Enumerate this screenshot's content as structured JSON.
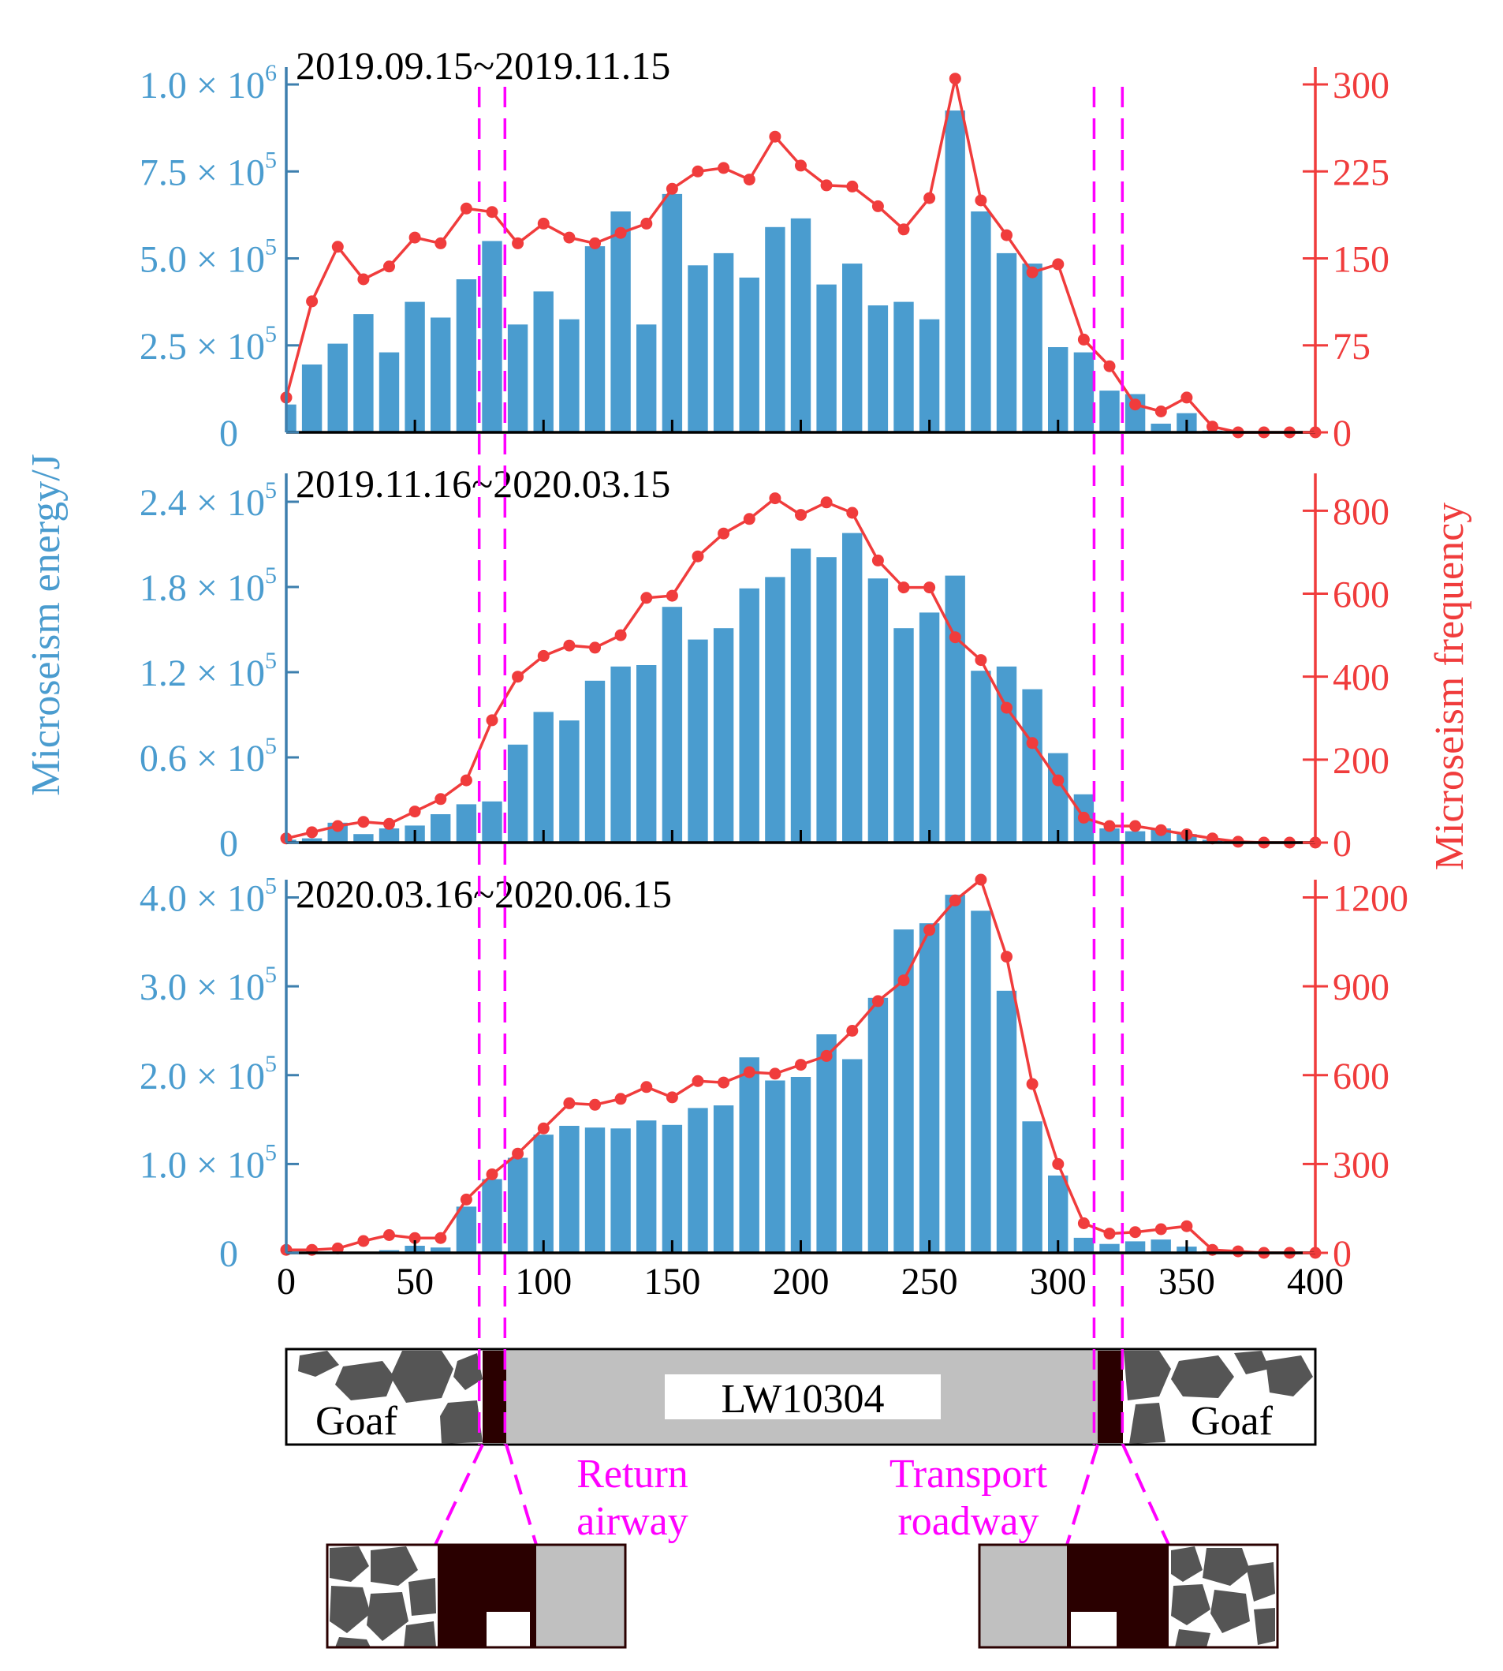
{
  "colors": {
    "energy": "#4a9ccf",
    "energy_axis": "#3d7fae",
    "frequency": "#f03c3c",
    "guide": "#ff00ff",
    "pillar": "#2a0000",
    "coal": "#c0c0c0",
    "rock": "#555555",
    "text": "#000000"
  },
  "labels": {
    "y_left": "Microseism energy/J",
    "y_right": "Microseism frequency",
    "goaf_left": "Goaf",
    "goaf_right": "Goaf",
    "panel": "LW10304",
    "return_line1": "Return",
    "return_line2": "airway",
    "transport_line1": "Transport",
    "transport_line2": "roadway"
  },
  "chart_data": [
    {
      "type": "bar+line",
      "title": "2019.09.15~2019.11.15",
      "xlim": [
        0,
        400
      ],
      "x_bar": [
        0,
        10,
        20,
        30,
        40,
        50,
        60,
        70,
        80,
        90,
        100,
        110,
        120,
        130,
        140,
        150,
        160,
        170,
        180,
        190,
        200,
        210,
        220,
        230,
        240,
        250,
        260,
        270,
        280,
        290,
        300,
        310,
        320,
        330,
        340,
        350,
        360,
        370,
        380,
        390,
        400
      ],
      "energy": [
        80000,
        195000,
        255000,
        340000,
        230000,
        375000,
        330000,
        440000,
        550000,
        310000,
        405000,
        325000,
        535000,
        635000,
        310000,
        685000,
        480000,
        515000,
        445000,
        590000,
        615000,
        425000,
        485000,
        365000,
        375000,
        325000,
        925000,
        635000,
        515000,
        485000,
        245000,
        230000,
        120000,
        110000,
        25000,
        55000,
        5000,
        0,
        0,
        0,
        0
      ],
      "ylim_left": [
        0,
        1050000
      ],
      "yticks_left": [
        0,
        250000,
        500000,
        750000,
        1000000
      ],
      "ytick_labels_left": [
        {
          "m": "0",
          "e": ""
        },
        {
          "m": "2.5 × 10",
          "e": "5"
        },
        {
          "m": "5.0 × 10",
          "e": "5"
        },
        {
          "m": "7.5 × 10",
          "e": "5"
        },
        {
          "m": "1.0 × 10",
          "e": "6"
        }
      ],
      "x_line": [
        0,
        10,
        20,
        30,
        40,
        50,
        60,
        70,
        80,
        90,
        100,
        110,
        120,
        130,
        140,
        150,
        160,
        170,
        180,
        190,
        200,
        210,
        220,
        230,
        240,
        250,
        260,
        270,
        280,
        290,
        300,
        310,
        320,
        330,
        340,
        350,
        360,
        370,
        380,
        390,
        400
      ],
      "frequency": [
        30,
        113,
        160,
        132,
        143,
        168,
        163,
        193,
        190,
        163,
        180,
        168,
        163,
        172,
        180,
        210,
        225,
        228,
        218,
        255,
        230,
        213,
        212,
        195,
        175,
        202,
        305,
        200,
        170,
        138,
        145,
        80,
        57,
        24,
        18,
        30,
        5,
        0,
        0,
        0,
        0
      ],
      "ylim_right": [
        0,
        315
      ],
      "yticks_right": [
        0,
        75,
        150,
        225,
        300
      ],
      "ytick_labels_right": [
        "0",
        "75",
        "150",
        "225",
        "300"
      ]
    },
    {
      "type": "bar+line",
      "title": "2019.11.16~2020.03.15",
      "xlim": [
        0,
        400
      ],
      "x_bar": [
        0,
        10,
        20,
        30,
        40,
        50,
        60,
        70,
        80,
        90,
        100,
        110,
        120,
        130,
        140,
        150,
        160,
        170,
        180,
        190,
        200,
        210,
        220,
        230,
        240,
        250,
        260,
        270,
        280,
        290,
        300,
        310,
        320,
        330,
        340,
        350,
        360,
        370,
        380,
        390,
        400
      ],
      "energy": [
        2000,
        3000,
        14000,
        6000,
        10000,
        12000,
        20000,
        27000,
        29000,
        69000,
        92000,
        86000,
        114000,
        124000,
        125000,
        166000,
        143000,
        151000,
        179000,
        187000,
        207000,
        201000,
        218000,
        186000,
        151000,
        162000,
        188000,
        121000,
        124000,
        108000,
        63000,
        34000,
        10000,
        8000,
        10000,
        6000,
        2000,
        0,
        0,
        0,
        0
      ],
      "ylim_left": [
        0,
        260000
      ],
      "yticks_left": [
        0,
        60000,
        120000,
        180000,
        240000
      ],
      "ytick_labels_left": [
        {
          "m": "0",
          "e": ""
        },
        {
          "m": "0.6 × 10",
          "e": "5"
        },
        {
          "m": "1.2 × 10",
          "e": "5"
        },
        {
          "m": "1.8 × 10",
          "e": "5"
        },
        {
          "m": "2.4 × 10",
          "e": "5"
        }
      ],
      "x_line": [
        0,
        10,
        20,
        30,
        40,
        50,
        60,
        70,
        80,
        90,
        100,
        110,
        120,
        130,
        140,
        150,
        160,
        170,
        180,
        190,
        200,
        210,
        220,
        230,
        240,
        250,
        260,
        270,
        280,
        290,
        300,
        310,
        320,
        330,
        340,
        350,
        360,
        370,
        380,
        390,
        400
      ],
      "frequency": [
        10,
        25,
        40,
        50,
        45,
        75,
        105,
        150,
        295,
        400,
        450,
        475,
        470,
        500,
        590,
        595,
        690,
        745,
        780,
        830,
        790,
        820,
        795,
        680,
        615,
        615,
        495,
        440,
        325,
        240,
        150,
        60,
        40,
        40,
        30,
        20,
        10,
        2,
        0,
        0,
        0
      ],
      "ylim_right": [
        0,
        890
      ],
      "yticks_right": [
        0,
        200,
        400,
        600,
        800
      ],
      "ytick_labels_right": [
        "0",
        "200",
        "400",
        "600",
        "800"
      ]
    },
    {
      "type": "bar+line",
      "title": "2020.03.16~2020.06.15",
      "xlim": [
        0,
        400
      ],
      "xticks": [
        0,
        50,
        100,
        150,
        200,
        250,
        300,
        350,
        400
      ],
      "xtick_labels": [
        "0",
        "50",
        "100",
        "150",
        "200",
        "250",
        "300",
        "350",
        "400"
      ],
      "x_bar": [
        0,
        10,
        20,
        30,
        40,
        50,
        60,
        70,
        80,
        90,
        100,
        110,
        120,
        130,
        140,
        150,
        160,
        170,
        180,
        190,
        200,
        210,
        220,
        230,
        240,
        250,
        260,
        270,
        280,
        290,
        300,
        310,
        320,
        330,
        340,
        350,
        360,
        370,
        380,
        390,
        400
      ],
      "energy": [
        0,
        0,
        0,
        0,
        3000,
        8000,
        6000,
        52000,
        83000,
        107000,
        133000,
        143000,
        141000,
        140000,
        149000,
        144000,
        163000,
        166000,
        220000,
        194000,
        198000,
        246000,
        218000,
        287000,
        364000,
        371000,
        403000,
        385000,
        295000,
        148000,
        87000,
        17000,
        10000,
        13000,
        15000,
        7000,
        2000,
        0,
        0,
        0,
        0
      ],
      "ylim_left": [
        0,
        420000
      ],
      "yticks_left": [
        0,
        100000,
        200000,
        300000,
        400000
      ],
      "ytick_labels_left": [
        {
          "m": "0",
          "e": ""
        },
        {
          "m": "1.0 × 10",
          "e": "5"
        },
        {
          "m": "2.0 × 10",
          "e": "5"
        },
        {
          "m": "3.0 × 10",
          "e": "5"
        },
        {
          "m": "4.0 × 10",
          "e": "5"
        }
      ],
      "x_line": [
        0,
        10,
        20,
        30,
        40,
        50,
        60,
        70,
        80,
        90,
        100,
        110,
        120,
        130,
        140,
        150,
        160,
        170,
        180,
        190,
        200,
        210,
        220,
        230,
        240,
        250,
        260,
        270,
        280,
        290,
        300,
        310,
        320,
        330,
        340,
        350,
        360,
        370,
        380,
        390,
        400
      ],
      "frequency": [
        10,
        10,
        15,
        40,
        60,
        50,
        50,
        180,
        265,
        335,
        420,
        505,
        500,
        520,
        560,
        525,
        580,
        575,
        610,
        605,
        635,
        665,
        750,
        850,
        920,
        1090,
        1190,
        1260,
        1000,
        570,
        300,
        100,
        65,
        70,
        80,
        90,
        10,
        5,
        0,
        0,
        0
      ],
      "ylim_right": [
        0,
        1260
      ],
      "yticks_right": [
        0,
        300,
        600,
        900,
        1200
      ],
      "ytick_labels_right": [
        "0",
        "300",
        "600",
        "900",
        "1200"
      ]
    }
  ],
  "guides_x": [
    75,
    85,
    314,
    325
  ]
}
